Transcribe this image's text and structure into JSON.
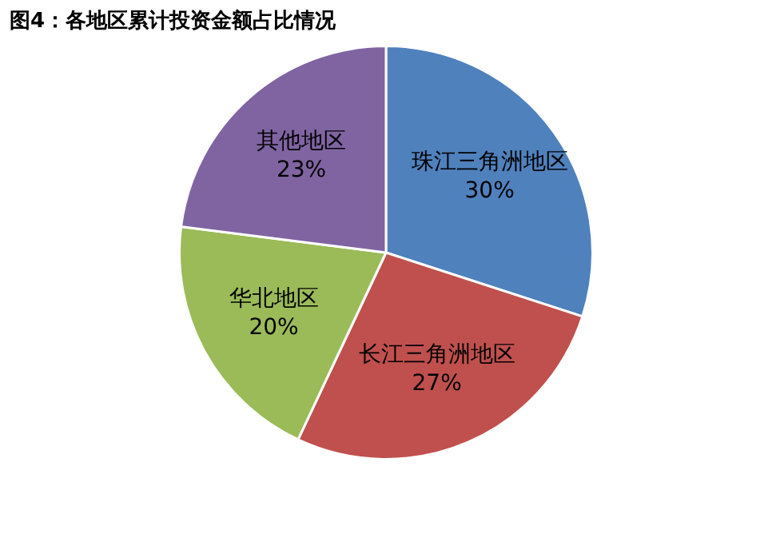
{
  "chart_data": {
    "type": "pie",
    "title": "图4：各地区累计投资金额占比情况",
    "categories": [
      "珠江三角洲地区",
      "长江三角洲地区",
      "华北地区",
      "其他地区"
    ],
    "values": [
      30,
      27,
      20,
      23
    ],
    "value_labels": [
      "30%",
      "27%",
      "20%",
      "23%"
    ],
    "colors": [
      "#4f81bd",
      "#c0504d",
      "#9bbb59",
      "#8064a2"
    ],
    "legend": false
  }
}
